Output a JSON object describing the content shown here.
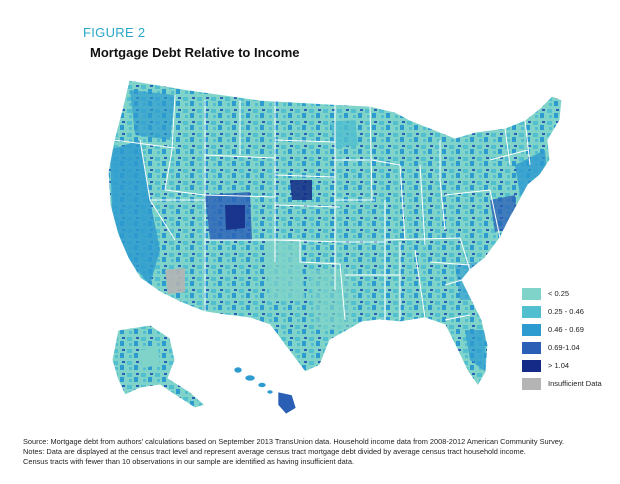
{
  "figure_label": "FIGURE 2",
  "title": "Mortgage Debt Relative to Income",
  "colors": {
    "lt_025": "#7fd3c9",
    "r025_046": "#52bfd0",
    "r046_069": "#2e9bd0",
    "r069_104": "#2b5fb6",
    "gt_104": "#142a86",
    "insufficient": "#b4b4b4",
    "state_border": "#ffffff"
  },
  "legend": {
    "position": "right",
    "items": [
      {
        "label": "< 0.25",
        "color": "#7fd3c9"
      },
      {
        "label": "0.25 - 0.46",
        "color": "#52bfd0"
      },
      {
        "label": "0.46 - 0.69",
        "color": "#2e9bd0"
      },
      {
        "label": "0.69-1.04",
        "color": "#2b5fb6"
      },
      {
        "label": "> 1.04",
        "color": "#142a86"
      },
      {
        "label": "Insufficient Data",
        "color": "#b4b4b4"
      }
    ]
  },
  "notes": {
    "source": "Source: Mortgage debt from authors' calculations based on September 2013 TransUnion data. Household income data from 2008-2012 American Community Survey.",
    "note1": "Notes: Data are displayed at the census tract level and represent average census tract mortgage debt divided by average census tract household income.",
    "note2": "Census tracts with fewer than 10 observations in our sample are identified as having insufficient data."
  }
}
